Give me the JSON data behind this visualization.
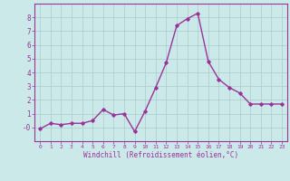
{
  "x": [
    0,
    1,
    2,
    3,
    4,
    5,
    6,
    7,
    8,
    9,
    10,
    11,
    12,
    13,
    14,
    15,
    16,
    17,
    18,
    19,
    20,
    21,
    22,
    23
  ],
  "y": [
    -0.1,
    0.3,
    0.2,
    0.3,
    0.3,
    0.5,
    1.3,
    0.9,
    1.0,
    -0.3,
    1.2,
    2.9,
    4.7,
    7.4,
    7.9,
    8.3,
    4.8,
    3.5,
    2.9,
    2.5,
    1.7,
    1.7,
    1.7,
    1.7
  ],
  "xlabel": "Windchill (Refroidissement éolien,°C)",
  "xlim": [
    -0.5,
    23.5
  ],
  "ylim": [
    -1.0,
    9.0
  ],
  "yticks": [
    0,
    1,
    2,
    3,
    4,
    5,
    6,
    7,
    8
  ],
  "xticks": [
    0,
    1,
    2,
    3,
    4,
    5,
    6,
    7,
    8,
    9,
    10,
    11,
    12,
    13,
    14,
    15,
    16,
    17,
    18,
    19,
    20,
    21,
    22,
    23
  ],
  "line_color": "#993399",
  "marker": "D",
  "marker_size": 1.8,
  "background_color": "#cce9e9",
  "grid_color": "#aacccc",
  "tick_label_color": "#993399",
  "xlabel_color": "#993399",
  "line_width": 1.0
}
